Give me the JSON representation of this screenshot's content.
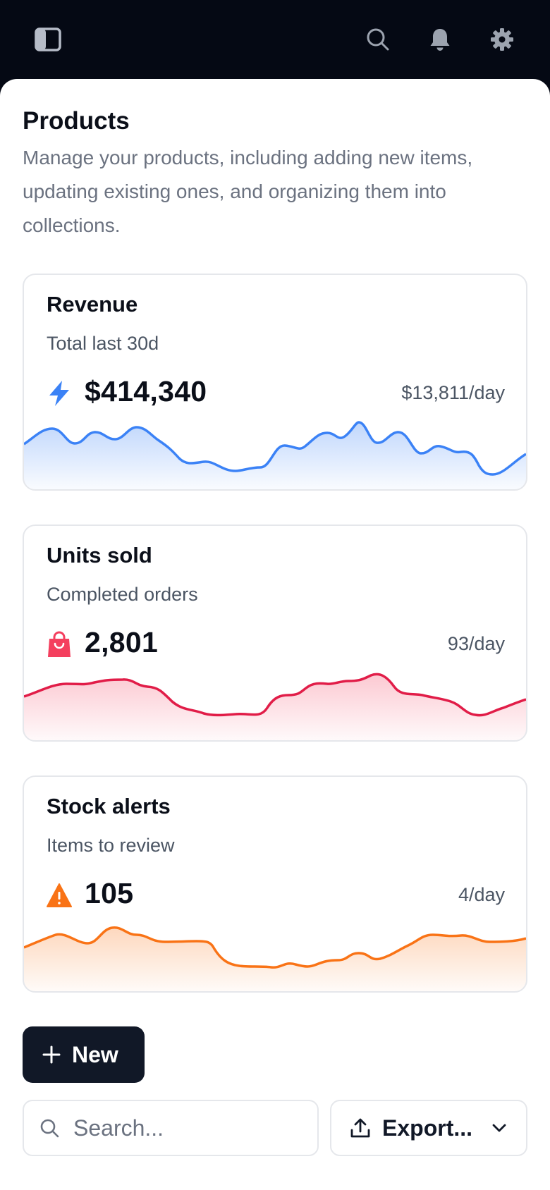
{
  "topbar": {
    "icons": [
      "sidebar-toggle-icon",
      "search-icon",
      "bell-icon",
      "gear-icon"
    ]
  },
  "page": {
    "title": "Products",
    "description": "Manage your products, including adding new items, updating existing ones, and organizing them into collections."
  },
  "cards": [
    {
      "title": "Revenue",
      "subtitle": "Total last 30d",
      "value": "$414,340",
      "rate": "$13,811/day",
      "icon": "bolt-icon",
      "color": "#3b82f6"
    },
    {
      "title": "Units sold",
      "subtitle": "Completed orders",
      "value": "2,801",
      "rate": "93/day",
      "icon": "shopping-bag-icon",
      "color": "#f43f5e"
    },
    {
      "title": "Stock alerts",
      "subtitle": "Items to review",
      "value": "105",
      "rate": "4/day",
      "icon": "warning-icon",
      "color": "#f97316"
    }
  ],
  "actions": {
    "new_label": "New",
    "search_placeholder": "Search...",
    "export_label": "Export..."
  }
}
